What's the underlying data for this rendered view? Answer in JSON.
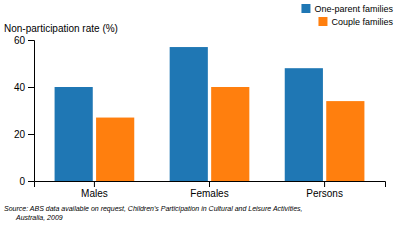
{
  "chart_data": {
    "type": "bar",
    "ylabel": "Non-participation rate (%)",
    "categories": [
      "Males",
      "Females",
      "Persons"
    ],
    "series": [
      {
        "name": "One-parent families",
        "values": [
          40,
          57,
          48
        ]
      },
      {
        "name": "Couple families",
        "values": [
          27,
          40,
          34
        ]
      }
    ],
    "ylim": [
      0,
      60
    ],
    "yticks": [
      0,
      20,
      40,
      60
    ],
    "grid": false,
    "legend": "upper right",
    "annotations": [
      "Source: ABS data available on request, Children's Participation in Cultural and Leisure Activities,",
      "Australia, 2009"
    ]
  }
}
